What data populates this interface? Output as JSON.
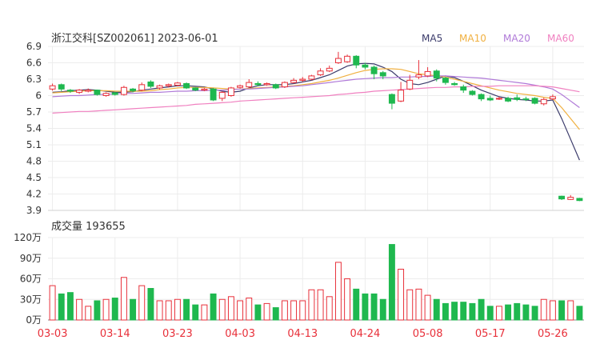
{
  "chart_data": [
    {
      "type": "candlestick",
      "title": "浙江交科[SZ002061] 2023-06-01",
      "ylim": [
        3.9,
        6.9
      ],
      "yticks": [
        "6.9",
        "6.6",
        "6.3",
        "6",
        "5.7",
        "5.4",
        "5.1",
        "4.8",
        "4.5",
        "4.2",
        "3.9"
      ],
      "date_labels": [
        "03-03",
        "03-14",
        "03-23",
        "04-03",
        "04-13",
        "04-24",
        "05-08",
        "05-17",
        "05-26"
      ],
      "date_label_days": [
        0,
        7,
        14,
        21,
        28,
        35,
        42,
        49,
        56
      ],
      "legend": [
        {
          "name": "MA5",
          "color": "#3b3b6b"
        },
        {
          "name": "MA10",
          "color": "#f0b040"
        },
        {
          "name": "MA20",
          "color": "#b07ad8"
        },
        {
          "name": "MA60",
          "color": "#f080c0"
        }
      ],
      "colors": {
        "up": "#e8303a",
        "down": "#1fb84f"
      },
      "days": [
        {
          "o": 6.12,
          "c": 6.18,
          "h": 6.22,
          "l": 6.09
        },
        {
          "o": 6.2,
          "c": 6.12,
          "h": 6.22,
          "l": 6.08
        },
        {
          "o": 6.1,
          "c": 6.08,
          "h": 6.12,
          "l": 6.05
        },
        {
          "o": 6.06,
          "c": 6.1,
          "h": 6.12,
          "l": 6.03
        },
        {
          "o": 6.08,
          "c": 6.1,
          "h": 6.13,
          "l": 6.06
        },
        {
          "o": 6.1,
          "c": 6.02,
          "h": 6.11,
          "l": 6.0
        },
        {
          "o": 6.0,
          "c": 6.04,
          "h": 6.06,
          "l": 5.98
        },
        {
          "o": 6.05,
          "c": 6.02,
          "h": 6.07,
          "l": 6.0
        },
        {
          "o": 6.02,
          "c": 6.15,
          "h": 6.18,
          "l": 6.0
        },
        {
          "o": 6.12,
          "c": 6.09,
          "h": 6.14,
          "l": 6.06
        },
        {
          "o": 6.1,
          "c": 6.2,
          "h": 6.24,
          "l": 6.08
        },
        {
          "o": 6.25,
          "c": 6.17,
          "h": 6.28,
          "l": 6.14
        },
        {
          "o": 6.14,
          "c": 6.18,
          "h": 6.2,
          "l": 6.11
        },
        {
          "o": 6.18,
          "c": 6.2,
          "h": 6.22,
          "l": 6.15
        },
        {
          "o": 6.19,
          "c": 6.23,
          "h": 6.25,
          "l": 6.17
        },
        {
          "o": 6.22,
          "c": 6.14,
          "h": 6.24,
          "l": 6.12
        },
        {
          "o": 6.14,
          "c": 6.1,
          "h": 6.15,
          "l": 6.08
        },
        {
          "o": 6.1,
          "c": 6.12,
          "h": 6.14,
          "l": 6.08
        },
        {
          "o": 6.12,
          "c": 5.92,
          "h": 6.14,
          "l": 5.9
        },
        {
          "o": 5.95,
          "c": 6.06,
          "h": 6.08,
          "l": 5.9
        },
        {
          "o": 6.0,
          "c": 6.14,
          "h": 6.16,
          "l": 5.98
        },
        {
          "o": 6.15,
          "c": 6.18,
          "h": 6.2,
          "l": 6.13
        },
        {
          "o": 6.16,
          "c": 6.24,
          "h": 6.3,
          "l": 6.14
        },
        {
          "o": 6.22,
          "c": 6.2,
          "h": 6.26,
          "l": 6.17
        },
        {
          "o": 6.2,
          "c": 6.22,
          "h": 6.24,
          "l": 6.18
        },
        {
          "o": 6.2,
          "c": 6.14,
          "h": 6.22,
          "l": 6.12
        },
        {
          "o": 6.16,
          "c": 6.24,
          "h": 6.26,
          "l": 6.14
        },
        {
          "o": 6.24,
          "c": 6.28,
          "h": 6.32,
          "l": 6.22
        },
        {
          "o": 6.28,
          "c": 6.3,
          "h": 6.34,
          "l": 6.25
        },
        {
          "o": 6.3,
          "c": 6.36,
          "h": 6.38,
          "l": 6.28
        },
        {
          "o": 6.38,
          "c": 6.45,
          "h": 6.5,
          "l": 6.36
        },
        {
          "o": 6.45,
          "c": 6.5,
          "h": 6.55,
          "l": 6.43
        },
        {
          "o": 6.6,
          "c": 6.68,
          "h": 6.8,
          "l": 6.58
        },
        {
          "o": 6.62,
          "c": 6.72,
          "h": 6.75,
          "l": 6.6
        },
        {
          "o": 6.72,
          "c": 6.56,
          "h": 6.74,
          "l": 6.5
        },
        {
          "o": 6.56,
          "c": 6.52,
          "h": 6.6,
          "l": 6.48
        },
        {
          "o": 6.52,
          "c": 6.4,
          "h": 6.55,
          "l": 6.3
        },
        {
          "o": 6.42,
          "c": 6.36,
          "h": 6.45,
          "l": 6.3
        },
        {
          "o": 6.02,
          "c": 5.86,
          "h": 6.04,
          "l": 5.75
        },
        {
          "o": 5.9,
          "c": 6.1,
          "h": 6.25,
          "l": 5.88
        },
        {
          "o": 6.12,
          "c": 6.28,
          "h": 6.38,
          "l": 6.1
        },
        {
          "o": 6.34,
          "c": 6.38,
          "h": 6.65,
          "l": 6.3
        },
        {
          "o": 6.36,
          "c": 6.44,
          "h": 6.52,
          "l": 6.34
        },
        {
          "o": 6.45,
          "c": 6.32,
          "h": 6.48,
          "l": 6.26
        },
        {
          "o": 6.32,
          "c": 6.24,
          "h": 6.34,
          "l": 6.2
        },
        {
          "o": 6.22,
          "c": 6.2,
          "h": 6.25,
          "l": 6.18
        },
        {
          "o": 6.16,
          "c": 6.1,
          "h": 6.2,
          "l": 6.05
        },
        {
          "o": 6.08,
          "c": 6.02,
          "h": 6.1,
          "l": 6.0
        },
        {
          "o": 6.02,
          "c": 5.94,
          "h": 6.04,
          "l": 5.9
        },
        {
          "o": 5.95,
          "c": 5.92,
          "h": 6.0,
          "l": 5.9
        },
        {
          "o": 5.94,
          "c": 5.95,
          "h": 5.98,
          "l": 5.92
        },
        {
          "o": 5.95,
          "c": 5.9,
          "h": 5.98,
          "l": 5.88
        },
        {
          "o": 5.96,
          "c": 5.93,
          "h": 6.02,
          "l": 5.9
        },
        {
          "o": 5.94,
          "c": 5.93,
          "h": 5.98,
          "l": 5.9
        },
        {
          "o": 5.95,
          "c": 5.86,
          "h": 5.97,
          "l": 5.84
        },
        {
          "o": 5.85,
          "c": 5.93,
          "h": 5.96,
          "l": 5.82
        },
        {
          "o": 5.94,
          "c": 5.98,
          "h": 6.02,
          "l": 5.92
        },
        {
          "o": 4.16,
          "c": 4.11,
          "h": 4.17,
          "l": 4.09
        },
        {
          "o": 4.1,
          "c": 4.14,
          "h": 4.18,
          "l": 4.09
        },
        {
          "o": 4.12,
          "c": 4.08,
          "h": 4.13,
          "l": 4.07
        }
      ],
      "ma": {
        "MA5": [
          6.06,
          6.07,
          6.09,
          6.1,
          6.11,
          6.1,
          6.08,
          6.06,
          6.06,
          6.07,
          6.1,
          6.12,
          6.14,
          6.16,
          6.18,
          6.18,
          6.17,
          6.16,
          6.12,
          6.08,
          6.06,
          6.08,
          6.14,
          6.18,
          6.2,
          6.2,
          6.2,
          6.22,
          6.25,
          6.28,
          6.33,
          6.38,
          6.46,
          6.54,
          6.58,
          6.59,
          6.58,
          6.52,
          6.44,
          6.3,
          6.22,
          6.2,
          6.24,
          6.3,
          6.36,
          6.33,
          6.26,
          6.18,
          6.1,
          6.04,
          5.98,
          5.95,
          5.93,
          5.92,
          5.9,
          5.9,
          5.92,
          5.58,
          5.2,
          4.82
        ],
        "MA10": [
          6.05,
          6.06,
          6.07,
          6.08,
          6.09,
          6.09,
          6.09,
          6.08,
          6.08,
          6.08,
          6.08,
          6.09,
          6.11,
          6.12,
          6.14,
          6.15,
          6.15,
          6.15,
          6.14,
          6.13,
          6.12,
          6.12,
          6.13,
          6.14,
          6.15,
          6.16,
          6.17,
          6.18,
          6.2,
          6.22,
          6.25,
          6.28,
          6.32,
          6.37,
          6.42,
          6.46,
          6.48,
          6.49,
          6.49,
          6.48,
          6.44,
          6.4,
          6.38,
          6.36,
          6.34,
          6.3,
          6.26,
          6.22,
          6.18,
          6.14,
          6.1,
          6.07,
          6.04,
          6.02,
          6.0,
          5.97,
          5.95,
          5.78,
          5.58,
          5.38
        ],
        "MA20": [
          5.98,
          5.99,
          6.0,
          6.0,
          6.01,
          6.02,
          6.02,
          6.03,
          6.04,
          6.04,
          6.05,
          6.06,
          6.06,
          6.07,
          6.08,
          6.08,
          6.09,
          6.09,
          6.1,
          6.1,
          6.11,
          6.12,
          6.12,
          6.13,
          6.14,
          6.15,
          6.16,
          6.17,
          6.18,
          6.2,
          6.22,
          6.24,
          6.26,
          6.28,
          6.3,
          6.31,
          6.32,
          6.33,
          6.33,
          6.34,
          6.34,
          6.35,
          6.35,
          6.36,
          6.36,
          6.35,
          6.34,
          6.33,
          6.32,
          6.3,
          6.28,
          6.26,
          6.24,
          6.22,
          6.19,
          6.16,
          6.12,
          6.02,
          5.9,
          5.78
        ],
        "MA60": [
          5.68,
          5.69,
          5.7,
          5.71,
          5.71,
          5.72,
          5.73,
          5.74,
          5.75,
          5.76,
          5.77,
          5.78,
          5.79,
          5.8,
          5.81,
          5.82,
          5.84,
          5.85,
          5.86,
          5.87,
          5.88,
          5.9,
          5.91,
          5.92,
          5.93,
          5.94,
          5.95,
          5.96,
          5.97,
          5.98,
          5.99,
          6.0,
          6.02,
          6.03,
          6.05,
          6.06,
          6.08,
          6.09,
          6.1,
          6.11,
          6.12,
          6.13,
          6.14,
          6.15,
          6.15,
          6.16,
          6.16,
          6.17,
          6.17,
          6.17,
          6.18,
          6.18,
          6.18,
          6.18,
          6.18,
          6.17,
          6.16,
          6.13,
          6.1,
          6.07
        ]
      }
    },
    {
      "type": "bar",
      "title": "成交量 193655",
      "ylim": [
        0,
        120
      ],
      "unit": "万",
      "yticks": [
        "120万",
        "90万",
        "60万",
        "30万",
        "0万"
      ],
      "values": [
        50,
        38,
        40,
        30,
        20,
        28,
        30,
        32,
        62,
        30,
        50,
        46,
        28,
        28,
        30,
        30,
        22,
        22,
        38,
        30,
        34,
        28,
        32,
        22,
        24,
        18,
        28,
        28,
        28,
        44,
        44,
        34,
        84,
        60,
        45,
        38,
        38,
        30,
        110,
        74,
        44,
        45,
        36,
        30,
        24,
        26,
        26,
        24,
        30,
        20,
        20,
        22,
        24,
        22,
        20,
        30,
        28,
        28,
        28,
        20
      ]
    }
  ]
}
